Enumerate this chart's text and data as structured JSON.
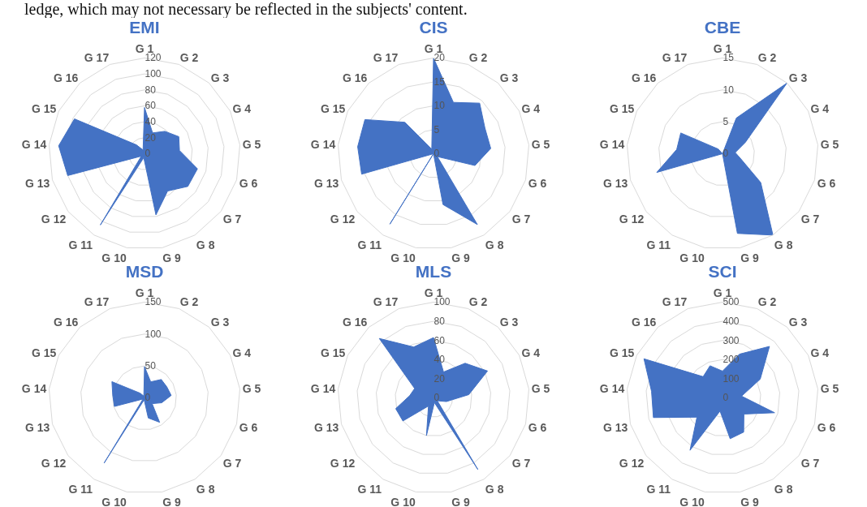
{
  "chart_data": [
    {
      "type": "radar",
      "title": "EMI",
      "annotations": [
        "ledge, which may not necessary be reflected in the subjects' content."
      ],
      "categories": [
        "G 1",
        "G 2",
        "G 3",
        "G 4",
        "G 5",
        "G 6",
        "G 7",
        "G 8",
        "G 9",
        "G 10",
        "G 11",
        "G 12",
        "G 13",
        "G 14",
        "G 15",
        "G 16",
        "G 17"
      ],
      "ylim": [
        0,
        120
      ],
      "yticks": [
        0,
        20,
        40,
        60,
        80,
        100,
        120
      ],
      "grid": true,
      "marker": "none",
      "series": [
        {
          "color": "#4472c4",
          "values": [
            58,
            28,
            38,
            48,
            44,
            69,
            68,
            55,
            78,
            5,
            105,
            5,
            100,
            108,
            98,
            15,
            5
          ]
        }
      ]
    },
    {
      "type": "radar",
      "title": "CIS",
      "categories": [
        "G 1",
        "G 2",
        "G 3",
        "G 4",
        "G 5",
        "G 6",
        "G 7",
        "G 8",
        "G 9",
        "G 10",
        "G 11",
        "G 12",
        "G 13",
        "G 14",
        "G 15",
        "G 16",
        "G 17"
      ],
      "ylim": [
        0,
        20
      ],
      "yticks": [
        0,
        5,
        10,
        15,
        20
      ],
      "grid": true,
      "marker": "none",
      "series": [
        {
          "color": "#4472c4",
          "values": [
            20,
            11.5,
            14.3,
            12,
            12,
            9,
            1,
            17.4,
            10.8,
            0,
            17.3,
            0,
            15.6,
            15.9,
            16,
            8.9,
            1
          ]
        }
      ]
    },
    {
      "type": "radar",
      "title": "CBE",
      "categories": [
        "G 1",
        "G 2",
        "G 3",
        "G 4",
        "G 5",
        "G 6",
        "G 7",
        "G 8",
        "G 9",
        "G 10",
        "G 11",
        "G 12",
        "G 13",
        "G 14",
        "G 15",
        "G 16",
        "G 17"
      ],
      "ylim": [
        0,
        15
      ],
      "yticks": [
        0,
        5,
        10,
        15
      ],
      "grid": true,
      "marker": "none",
      "series": [
        {
          "color": "#4472c4",
          "values": [
            0,
            6,
            15,
            4,
            2,
            3,
            7.5,
            15,
            12.7,
            0,
            0,
            0,
            10.7,
            7.2,
            7.3,
            1,
            0
          ]
        }
      ]
    },
    {
      "type": "radar",
      "title": "MSD",
      "categories": [
        "G 1",
        "G 2",
        "G 3",
        "G 4",
        "G 5",
        "G 6",
        "G 7",
        "G 8",
        "G 9",
        "G 10",
        "G 11",
        "G 12",
        "G 13",
        "G 14",
        "G 15",
        "G 16",
        "G 17"
      ],
      "ylim": [
        0,
        150
      ],
      "yticks": [
        0,
        50,
        100,
        150
      ],
      "grid": true,
      "marker": "none",
      "series": [
        {
          "color": "#4472c4",
          "values": [
            49,
            27,
            39,
            39,
            42,
            28,
            15,
            45,
            32,
            3,
            120,
            3,
            49,
            50,
            57,
            10,
            3
          ]
        }
      ]
    },
    {
      "type": "radar",
      "title": "MLS",
      "categories": [
        "G 1",
        "G 2",
        "G 3",
        "G 4",
        "G 5",
        "G 6",
        "G 7",
        "G 8",
        "G 9",
        "G 10",
        "G 11",
        "G 12",
        "G 13",
        "G 14",
        "G 15",
        "G 16",
        "G 17"
      ],
      "ylim": [
        0,
        100
      ],
      "yticks": [
        0,
        20,
        40,
        60,
        80,
        100
      ],
      "grid": true,
      "marker": "none",
      "series": [
        {
          "color": "#4472c4",
          "values": [
            63,
            29,
            49,
            63,
            37,
            14,
            5,
            88,
            5,
            40,
            10,
            40,
            41,
            25,
            22,
            84,
            57
          ]
        }
      ]
    },
    {
      "type": "radar",
      "title": "SCI",
      "categories": [
        "G 1",
        "G 2",
        "G 3",
        "G 4",
        "G 5",
        "G 6",
        "G 7",
        "G 8",
        "G 9",
        "G 10",
        "G 11",
        "G 12",
        "G 13",
        "G 14",
        "G 15",
        "G 16",
        "G 17"
      ],
      "ylim": [
        0,
        500
      ],
      "yticks": [
        0,
        100,
        200,
        300,
        400,
        500
      ],
      "grid": true,
      "marker": "none",
      "series": [
        {
          "color": "#4472c4",
          "values": [
            140,
            245,
            364,
            220,
            100,
            283,
            140,
            210,
            217,
            70,
            322,
            167,
            375,
            372,
            458,
            150,
            180
          ]
        }
      ]
    }
  ]
}
